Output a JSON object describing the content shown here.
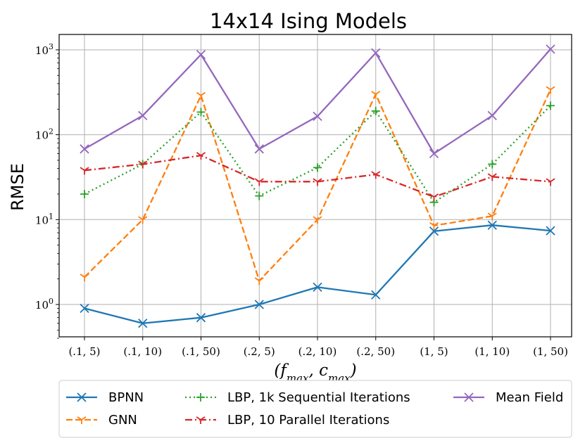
{
  "chart_data": {
    "type": "line",
    "title": "14x14 Ising Models",
    "xlabel": "(f_max, c_max)",
    "xlabel_parts": {
      "open": "(",
      "f": "f",
      "f_sub": "max",
      "sep": ", ",
      "c": "c",
      "c_sub": "max",
      "close": ")"
    },
    "ylabel": "RMSE",
    "yscale": "log",
    "ylim": [
      0.4,
      1500
    ],
    "yticks": [
      {
        "value": 1,
        "base": "10",
        "exp": "0"
      },
      {
        "value": 10,
        "base": "10",
        "exp": "1"
      },
      {
        "value": 100,
        "base": "10",
        "exp": "2"
      },
      {
        "value": 1000,
        "base": "10",
        "exp": "3"
      }
    ],
    "categories": [
      "(.1, 5)",
      "(.1, 10)",
      "(.1, 50)",
      "(.2, 5)",
      "(.2, 10)",
      "(.2, 50)",
      "(1, 5)",
      "(1, 10)",
      "(1, 50)"
    ],
    "grid": true,
    "legend_position": "below",
    "series": [
      {
        "name": "BPNN",
        "color": "#1f77b4",
        "dash": "solid",
        "marker": "x",
        "values": [
          0.9,
          0.6,
          0.7,
          1.0,
          1.6,
          1.3,
          7.3,
          8.6,
          7.4
        ]
      },
      {
        "name": "GNN",
        "color": "#ff7f0e",
        "dash": "dashed",
        "marker": "tri_down",
        "values": [
          2.1,
          10,
          290,
          1.9,
          10,
          300,
          8.5,
          11,
          340
        ]
      },
      {
        "name": "LBP, 1k Sequential Iterations",
        "color": "#2ca02c",
        "dash": "dotted",
        "marker": "plus",
        "values": [
          20,
          45,
          185,
          19,
          41,
          190,
          16,
          45,
          220
        ]
      },
      {
        "name": "LBP, 10 Parallel Iterations",
        "color": "#d62728",
        "dash": "dashdot",
        "marker": "tri_down",
        "values": [
          38,
          45,
          57,
          28,
          28,
          34,
          18.5,
          32,
          28
        ]
      },
      {
        "name": "Mean Field",
        "color": "#9467bd",
        "dash": "solid",
        "marker": "x",
        "values": [
          68,
          168,
          880,
          68,
          165,
          920,
          60,
          168,
          1020
        ]
      }
    ]
  }
}
